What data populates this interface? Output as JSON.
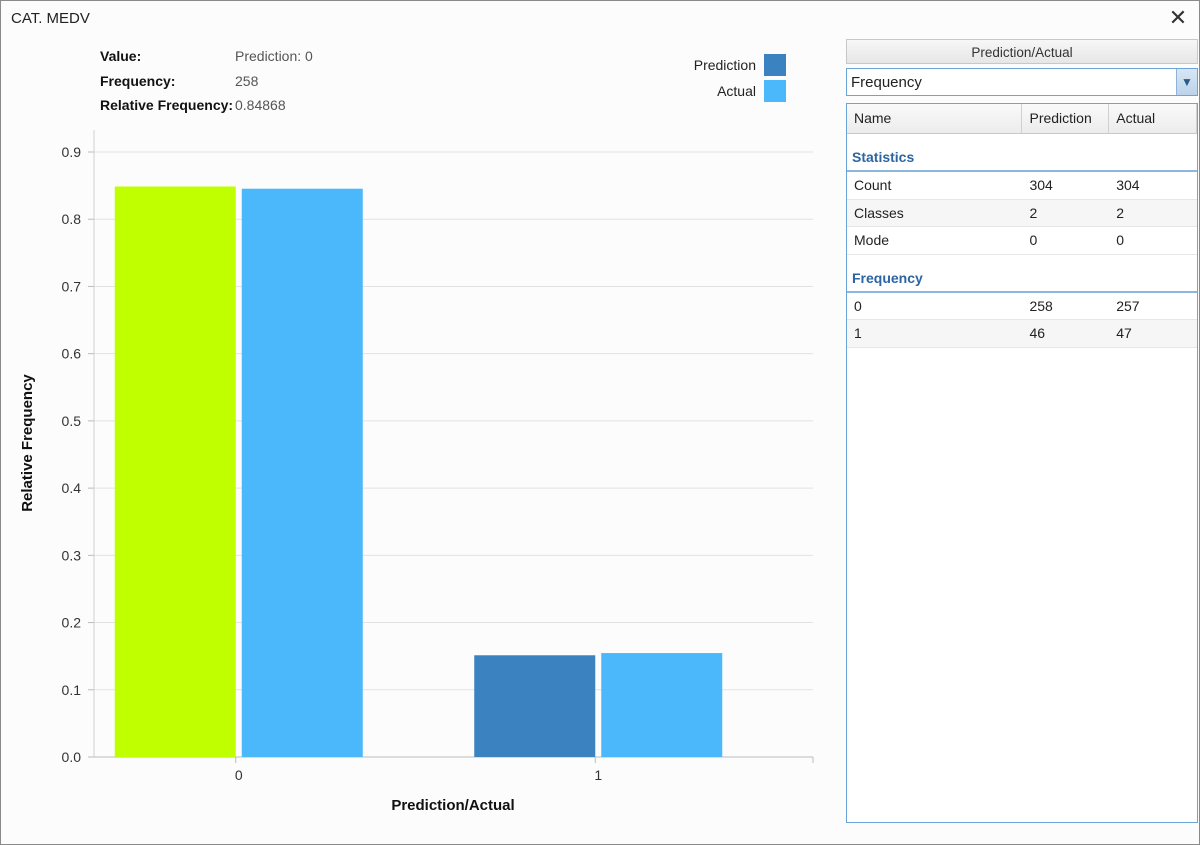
{
  "window": {
    "title": "CAT. MEDV"
  },
  "info": [
    {
      "key": "Value:",
      "value": "Prediction: 0"
    },
    {
      "key": "Frequency:",
      "value": "258"
    },
    {
      "key": "Relative Frequency:",
      "value": "0.84868"
    }
  ],
  "legend": [
    {
      "label": "Prediction",
      "color": "#3a82c0"
    },
    {
      "label": "Actual",
      "color": "#4bb8fc"
    }
  ],
  "chart_data": {
    "type": "bar",
    "categories": [
      "0",
      "1"
    ],
    "series": [
      {
        "name": "Prediction",
        "values": [
          0.84868,
          0.15132
        ],
        "color": "#3a82c0"
      },
      {
        "name": "Actual",
        "values": [
          0.84539,
          0.15461
        ],
        "color": "#4bb8fc"
      }
    ],
    "highlight": {
      "series": "Prediction",
      "category": "0",
      "color": "#c0ff00"
    },
    "xlabel": "Prediction/Actual",
    "ylabel": "Relative Frequency",
    "ylim": [
      0,
      0.9
    ],
    "yticks": [
      "0.0",
      "0.1",
      "0.2",
      "0.3",
      "0.4",
      "0.5",
      "0.6",
      "0.7",
      "0.8",
      "0.9"
    ],
    "grid": true
  },
  "panel": {
    "header": "Prediction/Actual",
    "dropdown_value": "Frequency",
    "columns": [
      "Name",
      "Prediction",
      "Actual"
    ],
    "sections": [
      {
        "title": "Statistics",
        "rows": [
          [
            "Count",
            "304",
            "304"
          ],
          [
            "Classes",
            "2",
            "2"
          ],
          [
            "Mode",
            "0",
            "0"
          ]
        ]
      },
      {
        "title": "Frequency",
        "rows": [
          [
            "0",
            "258",
            "257"
          ],
          [
            "1",
            "46",
            "47"
          ]
        ]
      }
    ]
  }
}
